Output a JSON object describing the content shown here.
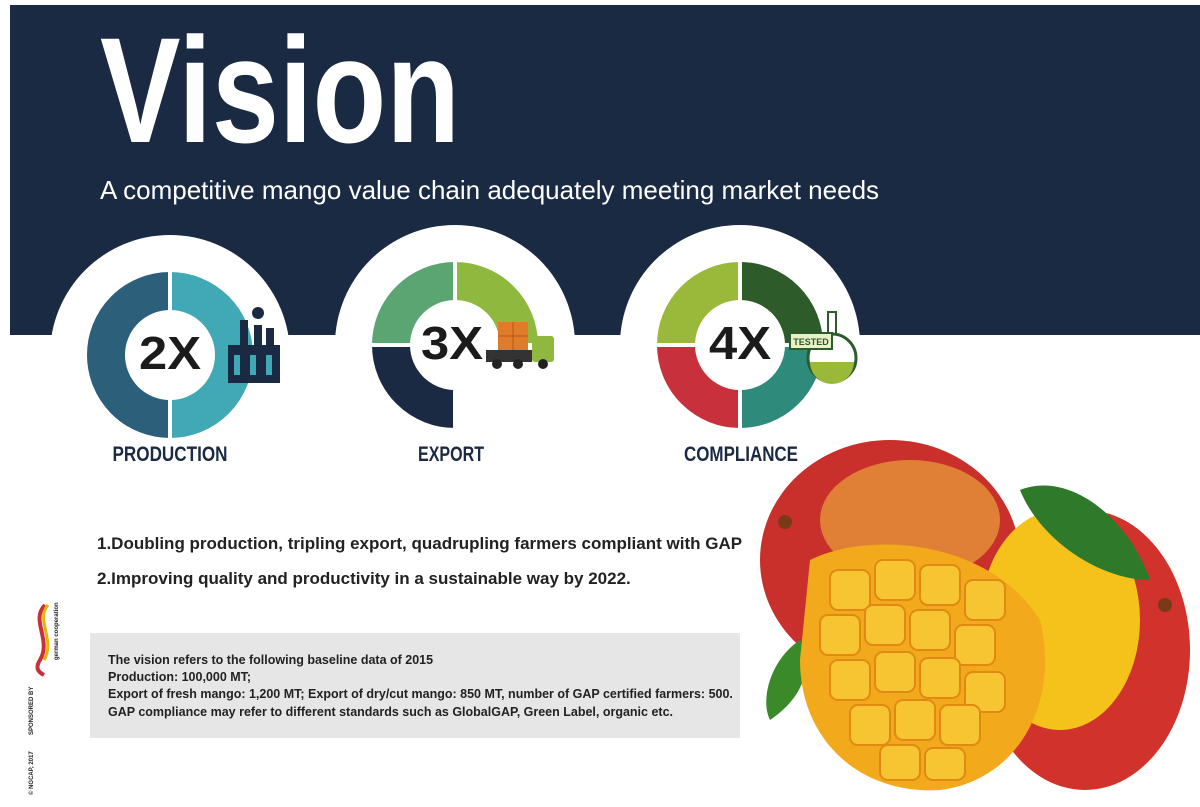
{
  "header": {
    "title": "Vision",
    "subtitle": "A competitive mango value chain adequately meeting market needs"
  },
  "targets": [
    {
      "label": "2X",
      "caption": "PRODUCTION"
    },
    {
      "label": "3X",
      "caption": "EXPORT",
      "icon_text": null
    },
    {
      "label": "4X",
      "caption": "COMPLIANCE",
      "icon_text": "TESTED"
    }
  ],
  "goals": [
    "1.Doubling production, tripling export, quadrupling farmers compliant with GAP",
    "2.Improving quality and productivity in a sustainable way by 2022."
  ],
  "baseline": [
    "The vision refers to the following baseline data of 2015",
    "Production: 100,000 MT;",
    "Export of fresh mango: 1,200 MT; Export of dry/cut mango: 850 MT, number of GAP certified farmers: 500.",
    "GAP compliance may refer to different standards such as GlobalGAP, Green Label, organic etc."
  ],
  "sidebar": {
    "sponsor": "SPONSORED BY",
    "logo": "german cooperation",
    "copyright": "© NGCAP, 2017"
  }
}
